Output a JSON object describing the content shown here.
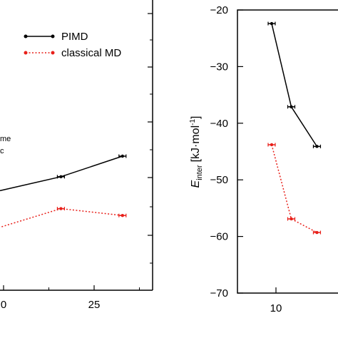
{
  "chart_data": [
    {
      "type": "line",
      "panel": "left",
      "x_tick_labels": [
        "0",
        "25"
      ],
      "y_tick_labels": [],
      "annotation_lines": [
        "me",
        "c"
      ],
      "legend": [
        {
          "label": "PIMD",
          "color": "#000000",
          "style": "solid"
        },
        {
          "label": "classical MD",
          "color": "#e8201a",
          "style": "dotted"
        }
      ],
      "legend_position": "top-right",
      "series": [
        {
          "name": "PIMD",
          "color": "#000000",
          "points": [
            [
              9.6,
              0.0
            ],
            [
              19.5,
              0.06
            ],
            [
              29.7,
              0.15
            ]
          ]
        },
        {
          "name": "classical MD",
          "color": "#e8201a",
          "points": [
            [
              9.6,
              -0.16
            ],
            [
              19.5,
              -0.08
            ],
            [
              29.7,
              -0.11
            ]
          ]
        }
      ]
    },
    {
      "type": "line",
      "panel": "right",
      "ylabel": "E_inter [kJ·mol⁻¹]",
      "ylabel_main": "E",
      "ylabel_sub": "inter",
      "ylabel_unit": "[kJ·mol",
      "ylabel_sup": "-1",
      "ylabel_close": "]",
      "ylim": [
        -70,
        -20
      ],
      "y_ticks": [
        -70,
        -60,
        -50,
        -40,
        -30,
        -20
      ],
      "x_tick_labels": [
        "10"
      ],
      "series": [
        {
          "name": "PIMD",
          "color": "#000000",
          "points": [
            [
              9.6,
              -22.4
            ],
            [
              10.9,
              -37.1
            ],
            [
              12.6,
              -44.1
            ]
          ],
          "err": 0.3
        },
        {
          "name": "classical MD",
          "color": "#e8201a",
          "points": [
            [
              9.6,
              -43.8
            ],
            [
              10.9,
              -56.9
            ],
            [
              12.6,
              -59.3
            ]
          ],
          "err": 0.3
        }
      ]
    }
  ]
}
